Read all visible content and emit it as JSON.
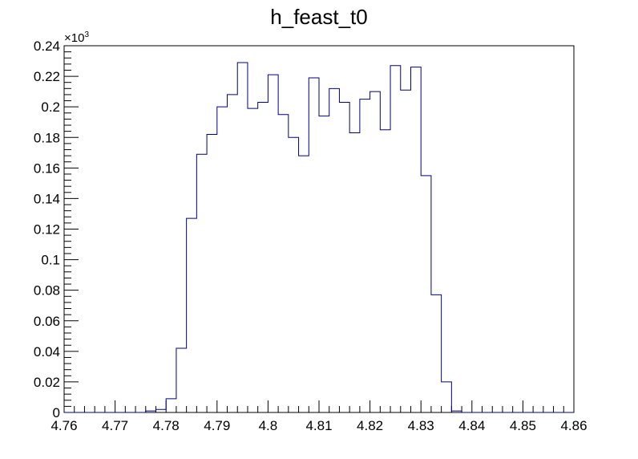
{
  "canvas": {
    "title": "h_feast_t0"
  },
  "chart_data": {
    "type": "histogram",
    "title": "h_feast_t0",
    "xlabel": "",
    "ylabel": "",
    "xlim": [
      4.76,
      4.86
    ],
    "ylim": [
      0,
      0.24
    ],
    "y_exponent_label": "×10",
    "y_exponent_power": "3",
    "bin_width": 0.002,
    "line_color": "#000080",
    "x_tick_labels": [
      "4.76",
      "4.77",
      "4.78",
      "4.79",
      "4.8",
      "4.81",
      "4.82",
      "4.83",
      "4.84",
      "4.85",
      "4.86"
    ],
    "x_tick_values": [
      4.76,
      4.77,
      4.78,
      4.79,
      4.8,
      4.81,
      4.82,
      4.83,
      4.84,
      4.85,
      4.86
    ],
    "y_tick_labels": [
      "0",
      "0.02",
      "0.04",
      "0.06",
      "0.08",
      "0.1",
      "0.12",
      "0.14",
      "0.16",
      "0.18",
      "0.2",
      "0.22",
      "0.24"
    ],
    "y_tick_values": [
      0,
      0.02,
      0.04,
      0.06,
      0.08,
      0.1,
      0.12,
      0.14,
      0.16,
      0.18,
      0.2,
      0.22,
      0.24
    ],
    "bin_edges": [
      4.76,
      4.762,
      4.764,
      4.766,
      4.768,
      4.77,
      4.772,
      4.774,
      4.776,
      4.778,
      4.78,
      4.782,
      4.784,
      4.786,
      4.788,
      4.79,
      4.792,
      4.794,
      4.796,
      4.798,
      4.8,
      4.802,
      4.804,
      4.806,
      4.808,
      4.81,
      4.812,
      4.814,
      4.816,
      4.818,
      4.82,
      4.822,
      4.824,
      4.826,
      4.828,
      4.83,
      4.832,
      4.834,
      4.836,
      4.838,
      4.84,
      4.842,
      4.844,
      4.846,
      4.848,
      4.85,
      4.852,
      4.854,
      4.856,
      4.858,
      4.86
    ],
    "values": [
      0,
      0,
      0,
      0,
      0,
      0,
      0,
      0,
      0.001,
      0.002,
      0.009,
      0.042,
      0.127,
      0.169,
      0.182,
      0.2,
      0.208,
      0.229,
      0.199,
      0.203,
      0.221,
      0.195,
      0.18,
      0.168,
      0.219,
      0.194,
      0.212,
      0.203,
      0.183,
      0.205,
      0.21,
      0.185,
      0.227,
      0.211,
      0.226,
      0.155,
      0.077,
      0.02,
      0.001,
      0,
      0,
      0,
      0,
      0,
      0,
      0,
      0,
      0,
      0,
      0
    ],
    "grid": false,
    "legend": "none"
  }
}
